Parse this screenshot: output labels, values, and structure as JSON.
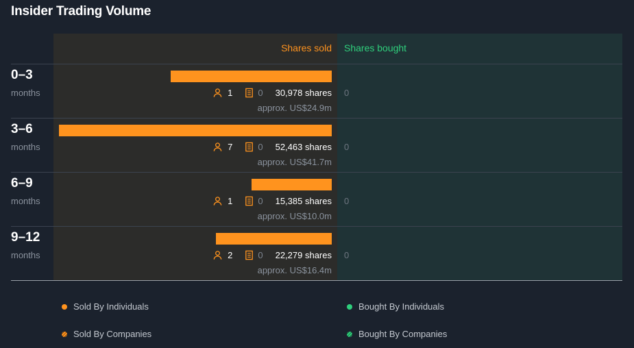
{
  "title": "Insider Trading Volume",
  "header": {
    "sold": "Shares sold",
    "bought": "Shares bought"
  },
  "colors": {
    "sold": "#ff931e",
    "bought": "#2fcf7c",
    "background": "#1b222d"
  },
  "chart_data": {
    "type": "bar",
    "orientation": "horizontal",
    "title": "Insider Trading Volume",
    "categories": [
      "0–3 months",
      "3–6 months",
      "6–9 months",
      "9–12 months"
    ],
    "series": [
      {
        "name": "Shares sold",
        "values": [
          30978,
          52463,
          15385,
          22279
        ]
      },
      {
        "name": "Shares bought",
        "values": [
          0,
          0,
          0,
          0
        ]
      }
    ]
  },
  "rows": [
    {
      "period": "0–3",
      "unit": "months",
      "individuals": "1",
      "companies": "0",
      "shares": 30978,
      "shares_label": "30,978 shares",
      "approx": "approx. US$24.9m",
      "bought": "0"
    },
    {
      "period": "3–6",
      "unit": "months",
      "individuals": "7",
      "companies": "0",
      "shares": 52463,
      "shares_label": "52,463 shares",
      "approx": "approx. US$41.7m",
      "bought": "0"
    },
    {
      "period": "6–9",
      "unit": "months",
      "individuals": "1",
      "companies": "0",
      "shares": 15385,
      "shares_label": "15,385 shares",
      "approx": "approx. US$10.0m",
      "bought": "0"
    },
    {
      "period": "9–12",
      "unit": "months",
      "individuals": "2",
      "companies": "0",
      "shares": 22279,
      "shares_label": "22,279 shares",
      "approx": "approx. US$16.4m",
      "bought": "0"
    }
  ],
  "icons": {
    "individual": "person-icon",
    "company": "building-icon"
  },
  "legend": {
    "sold_individuals": "Sold By Individuals",
    "bought_individuals": "Bought By Individuals",
    "sold_companies": "Sold By Companies",
    "bought_companies": "Bought By Companies"
  }
}
